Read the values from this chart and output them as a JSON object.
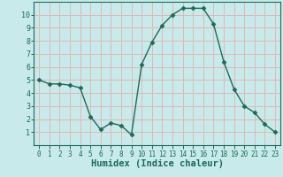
{
  "x": [
    0,
    1,
    2,
    3,
    4,
    5,
    6,
    7,
    8,
    9,
    10,
    11,
    12,
    13,
    14,
    15,
    16,
    17,
    18,
    19,
    20,
    21,
    22,
    23
  ],
  "y": [
    5.0,
    4.7,
    4.7,
    4.6,
    4.4,
    2.2,
    1.2,
    1.7,
    1.5,
    0.8,
    6.2,
    7.9,
    9.2,
    10.0,
    10.5,
    10.5,
    10.5,
    9.3,
    6.4,
    4.3,
    3.0,
    2.5,
    1.6,
    1.0
  ],
  "xlabel": "Humidex (Indice chaleur)",
  "xlim": [
    -0.5,
    23.5
  ],
  "ylim": [
    0,
    11
  ],
  "yticks": [
    1,
    2,
    3,
    4,
    5,
    6,
    7,
    8,
    9,
    10
  ],
  "xtick_labels": [
    "0",
    "1",
    "2",
    "3",
    "4",
    "5",
    "6",
    "7",
    "8",
    "9",
    "10",
    "11",
    "12",
    "13",
    "14",
    "15",
    "16",
    "17",
    "18",
    "19",
    "20",
    "21",
    "22",
    "23"
  ],
  "line_color": "#1a6b5a",
  "marker": "D",
  "marker_size": 2.5,
  "bg_color": "#c8eaea",
  "grid_color": "#e0b8b8",
  "label_fontsize": 7.5
}
